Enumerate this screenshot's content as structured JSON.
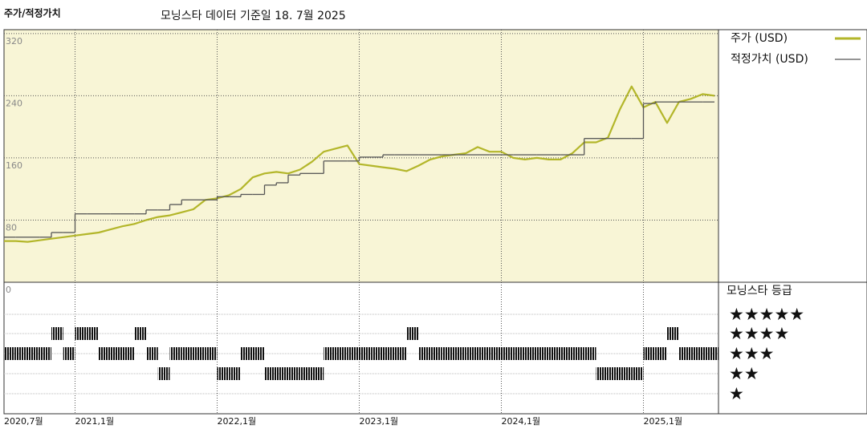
{
  "chart_data": {
    "type": "line",
    "title": "주가/적정가치",
    "subtitle": "모닝스타 데이터 기준일 18. 7월 2025",
    "x": [
      "2020-07",
      "2020-08",
      "2020-09",
      "2020-10",
      "2020-11",
      "2020-12",
      "2021-01",
      "2021-02",
      "2021-03",
      "2021-04",
      "2021-05",
      "2021-06",
      "2021-07",
      "2021-08",
      "2021-09",
      "2021-10",
      "2021-11",
      "2021-12",
      "2022-01",
      "2022-02",
      "2022-03",
      "2022-04",
      "2022-05",
      "2022-06",
      "2022-07",
      "2022-08",
      "2022-09",
      "2022-10",
      "2022-11",
      "2022-12",
      "2023-01",
      "2023-02",
      "2023-03",
      "2023-04",
      "2023-05",
      "2023-06",
      "2023-07",
      "2023-08",
      "2023-09",
      "2023-10",
      "2023-11",
      "2023-12",
      "2024-01",
      "2024-02",
      "2024-03",
      "2024-04",
      "2024-05",
      "2024-06",
      "2024-07",
      "2024-08",
      "2024-09",
      "2024-10",
      "2024-11",
      "2024-12",
      "2025-01",
      "2025-02",
      "2025-03",
      "2025-04",
      "2025-05",
      "2025-06",
      "2025-07"
    ],
    "series": [
      {
        "name": "주가 (USD)",
        "color": "#b3b62a",
        "values": [
          53,
          53,
          52,
          54,
          56,
          58,
          60,
          62,
          64,
          68,
          72,
          75,
          80,
          84,
          86,
          90,
          94,
          106,
          108,
          112,
          120,
          135,
          140,
          142,
          140,
          145,
          155,
          168,
          172,
          176,
          152,
          150,
          148,
          146,
          143,
          150,
          158,
          162,
          164,
          166,
          174,
          168,
          168,
          160,
          158,
          160,
          158,
          158,
          166,
          180,
          180,
          186,
          222,
          252,
          225,
          232,
          205,
          232,
          236,
          242,
          240
        ]
      },
      {
        "name": "적정가치 (USD)",
        "color": "#555555",
        "drawstyle": "steps-post",
        "values": [
          58,
          58,
          58,
          58,
          64,
          64,
          88,
          88,
          88,
          88,
          88,
          88,
          93,
          93,
          100,
          106,
          106,
          106,
          110,
          110,
          113,
          113,
          125,
          128,
          138,
          140,
          140,
          156,
          156,
          156,
          161,
          161,
          164,
          164,
          164,
          164,
          164,
          164,
          164,
          164,
          164,
          164,
          164,
          164,
          164,
          164,
          164,
          164,
          164,
          185,
          185,
          185,
          185,
          185,
          230,
          232,
          232,
          232,
          232,
          232,
          232
        ]
      }
    ],
    "xlim": [
      "2020-07",
      "2025-07"
    ],
    "xticks": [
      {
        "value": "2020-07",
        "label": "2020,7월"
      },
      {
        "value": "2021-01",
        "label": "2021,1월"
      },
      {
        "value": "2022-01",
        "label": "2022,1월"
      },
      {
        "value": "2023-01",
        "label": "2023,1월"
      },
      {
        "value": "2024-01",
        "label": "2024,1월"
      },
      {
        "value": "2025-01",
        "label": "2025,1월"
      }
    ],
    "ylim": [
      0,
      325
    ],
    "yticks": [
      0,
      80,
      160,
      240,
      320
    ],
    "grid": true,
    "legend": "right",
    "rating": {
      "title": "모닝스타 등급",
      "levels": [
        {
          "value": 5,
          "label": "★★★★★"
        },
        {
          "value": 4,
          "label": "★★★★"
        },
        {
          "value": 3,
          "label": "★★★"
        },
        {
          "value": 2,
          "label": "★★"
        },
        {
          "value": 1,
          "label": "★"
        }
      ],
      "values": [
        3,
        3,
        3,
        3,
        4,
        3,
        4,
        4,
        3,
        3,
        3,
        4,
        3,
        2,
        3,
        3,
        3,
        3,
        2,
        2,
        3,
        3,
        2,
        2,
        2,
        2,
        2,
        3,
        3,
        3,
        3,
        3,
        3,
        3,
        4,
        3,
        3,
        3,
        3,
        3,
        3,
        3,
        3,
        3,
        3,
        3,
        3,
        3,
        3,
        3,
        2,
        2,
        2,
        2,
        3,
        3,
        4,
        3,
        3,
        3,
        3
      ]
    }
  }
}
